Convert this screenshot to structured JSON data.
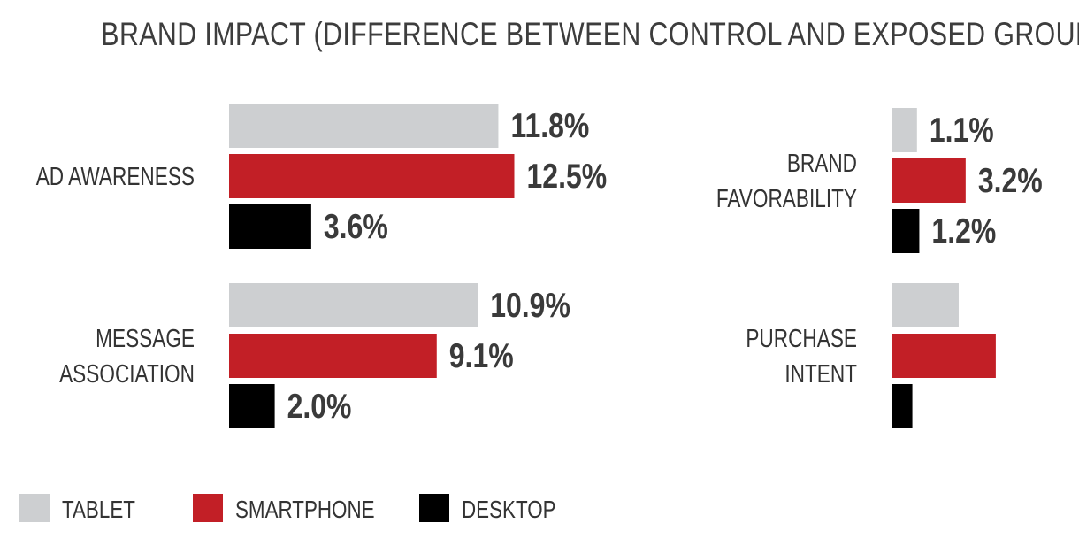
{
  "chart_data": {
    "type": "bar",
    "orientation": "horizontal",
    "title": "BRAND IMPACT (DIFFERENCE BETWEEN CONTROL AND EXPOSED GROUPS)",
    "series": [
      {
        "name": "TABLET",
        "color": "#cdcfd1"
      },
      {
        "name": "SMARTPHONE",
        "color": "#c21f26"
      },
      {
        "name": "DESKTOP",
        "color": "#000000"
      }
    ],
    "panels": [
      {
        "categories": [
          {
            "label": [
              "AD AWARENESS"
            ],
            "values": [
              11.8,
              12.5,
              3.6
            ],
            "value_labels": [
              "11.8%",
              "12.5%",
              "3.6%"
            ]
          },
          {
            "label": [
              "MESSAGE",
              "ASSOCIATION"
            ],
            "values": [
              10.9,
              9.1,
              2.0
            ],
            "value_labels": [
              "10.9%",
              "9.1%",
              "2.0%"
            ]
          }
        ]
      },
      {
        "categories": [
          {
            "label": [
              "BRAND",
              "FAVORABILITY"
            ],
            "values": [
              1.1,
              3.2,
              1.2
            ],
            "value_labels": [
              "1.1%",
              "3.2%",
              "1.2%"
            ]
          },
          {
            "label": [
              "PURCHASE",
              "INTENT"
            ],
            "values": [
              2.9,
              4.5,
              0.9
            ],
            "value_labels": [
              "",
              "",
              ""
            ]
          }
        ]
      }
    ],
    "legend_position": "bottom-left",
    "grid": false
  }
}
